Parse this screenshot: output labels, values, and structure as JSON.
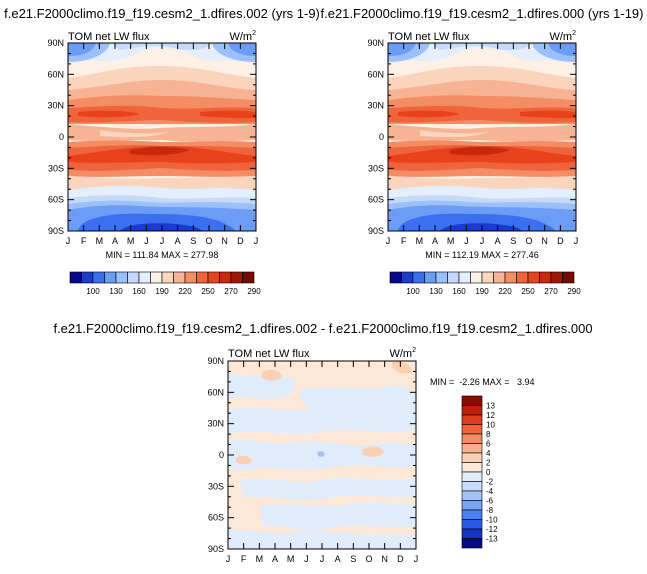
{
  "chart_data": [
    {
      "type": "heatmap",
      "title": "f.e21.F2000climo.f19_f19.cesm2_1.dfires.002 (yrs 1-9)",
      "left_label": "TOM net LW flux",
      "units_base": "W/m",
      "units_exp": "2",
      "x_ticks": [
        "J",
        "F",
        "M",
        "A",
        "M",
        "J",
        "J",
        "A",
        "S",
        "O",
        "N",
        "D",
        "J"
      ],
      "y_ticks": [
        "90N",
        "60N",
        "30N",
        "0",
        "30S",
        "60S",
        "90S"
      ],
      "stats": "MIN = 111.84 MAX = 277.98",
      "min": 111.84,
      "max": 277.98,
      "colorbar_labels": [
        "100",
        "130",
        "160",
        "190",
        "220",
        "250",
        "270",
        "290"
      ]
    },
    {
      "type": "heatmap",
      "title": "f.e21.F2000climo.f19_f19.cesm2_1.dfires.000 (yrs 1-19)",
      "left_label": "TOM net LW flux",
      "units_base": "W/m",
      "units_exp": "2",
      "x_ticks": [
        "J",
        "F",
        "M",
        "A",
        "M",
        "J",
        "J",
        "A",
        "S",
        "O",
        "N",
        "D",
        "J"
      ],
      "y_ticks": [
        "90N",
        "60N",
        "30N",
        "0",
        "30S",
        "60S",
        "90S"
      ],
      "stats": "MIN = 112.19 MAX = 277.46",
      "min": 112.19,
      "max": 277.46,
      "colorbar_labels": [
        "100",
        "130",
        "160",
        "190",
        "220",
        "250",
        "270",
        "290"
      ]
    },
    {
      "type": "heatmap",
      "title": "f.e21.F2000climo.f19_f19.cesm2_1.dfires.002 - f.e21.F2000climo.f19_f19.cesm2_1.dfires.000",
      "left_label": "TOM net LW flux",
      "units_base": "W/m",
      "units_exp": "2",
      "x_ticks": [
        "J",
        "F",
        "M",
        "A",
        "M",
        "J",
        "J",
        "A",
        "S",
        "O",
        "N",
        "D",
        "J"
      ],
      "y_ticks": [
        "90N",
        "60N",
        "30N",
        "0",
        "30S",
        "60S",
        "90S"
      ],
      "stats": "MIN =  -2.26 MAX =   3.94",
      "min": -2.26,
      "max": 3.94,
      "colorbar_labels": [
        "13",
        "12",
        "10",
        "8",
        "6",
        "4",
        "2",
        "0",
        "-2",
        "-4",
        "-6",
        "-8",
        "-10",
        "-12",
        "-13"
      ]
    }
  ],
  "colors": {
    "abs_scale": [
      "#08088a",
      "#1a3ad0",
      "#3c6ef0",
      "#6c9cf4",
      "#9cc0f8",
      "#c4daf8",
      "#e4eefc",
      "#fdf0e4",
      "#fad4bc",
      "#f7b494",
      "#f48c64",
      "#f0643c",
      "#e8421c",
      "#c8280c",
      "#a01808",
      "#700c04"
    ],
    "diff_scale": [
      "#08088a",
      "#1633c4",
      "#2a5ae8",
      "#4c80f2",
      "#78a4f6",
      "#a2c2f8",
      "#c6dcfa",
      "#e0ecfc",
      "#fde8d8",
      "#fad0b4",
      "#f6b08c",
      "#f28c64",
      "#ee643c",
      "#e03c1c",
      "#c02008",
      "#8a0a04"
    ]
  }
}
